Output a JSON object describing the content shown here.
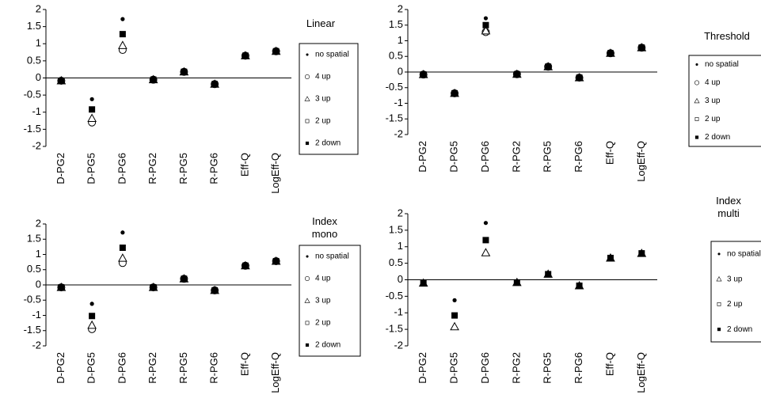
{
  "chart_data": [
    {
      "type": "scatter",
      "title": "Linear",
      "legend": "right",
      "categories": [
        "D-PG2",
        "D-PG5",
        "D-PG6",
        "R-PG2",
        "R-PG5",
        "R-PG6",
        "Eff-Q",
        "LogEff-Q"
      ],
      "ylim": [
        -2,
        2
      ],
      "yticks": [
        2,
        1.5,
        1,
        0.5,
        0,
        -0.5,
        -1,
        -1.5,
        -2
      ],
      "series": [
        {
          "name": "no spatial",
          "color": "#000000",
          "marker": "dot",
          "values": [
            -0.08,
            -0.62,
            1.72,
            -0.05,
            0.18,
            -0.18,
            0.65,
            0.78
          ]
        },
        {
          "name": "4 up",
          "color": "#000000",
          "marker": "circle",
          "values": [
            -0.08,
            -1.3,
            0.82,
            -0.05,
            0.18,
            -0.18,
            0.65,
            0.78
          ]
        },
        {
          "name": "3 up",
          "color": "#000000",
          "marker": "triangle",
          "values": [
            -0.08,
            -1.18,
            0.95,
            -0.05,
            0.18,
            -0.18,
            0.65,
            0.78
          ]
        },
        {
          "name": "2 up",
          "color": "#000000",
          "marker": "square",
          "values": [
            -0.08,
            -0.92,
            1.28,
            -0.05,
            0.18,
            -0.18,
            0.65,
            0.78
          ]
        },
        {
          "name": "2 down",
          "color": "#000000",
          "marker": "filled-square",
          "values": [
            -0.08,
            -0.92,
            1.28,
            -0.05,
            0.18,
            -0.18,
            0.65,
            0.78
          ]
        }
      ]
    },
    {
      "type": "scatter",
      "title": "Threshold",
      "legend": "right",
      "categories": [
        "D-PG2",
        "D-PG5",
        "D-PG6",
        "R-PG2",
        "R-PG5",
        "R-PG6",
        "Eff-Q",
        "LogEff-Q"
      ],
      "ylim": [
        -2,
        2
      ],
      "yticks": [
        2,
        1.5,
        1,
        0.5,
        0,
        -0.5,
        -1,
        -1.5,
        -2
      ],
      "series": [
        {
          "name": "no spatial",
          "color": "#000000",
          "marker": "dot",
          "values": [
            -0.08,
            -0.68,
            1.72,
            -0.07,
            0.17,
            -0.18,
            0.6,
            0.78
          ]
        },
        {
          "name": "4 up",
          "color": "#000000",
          "marker": "circle",
          "values": [
            -0.08,
            -0.68,
            1.28,
            -0.07,
            0.17,
            -0.18,
            0.6,
            0.78
          ]
        },
        {
          "name": "3 up",
          "color": "#000000",
          "marker": "triangle",
          "values": [
            -0.08,
            -0.68,
            1.32,
            -0.07,
            0.17,
            -0.18,
            0.6,
            0.78
          ]
        },
        {
          "name": "2 up",
          "color": "#000000",
          "marker": "square",
          "values": [
            -0.08,
            -0.68,
            1.5,
            -0.07,
            0.17,
            -0.18,
            0.6,
            0.78
          ]
        },
        {
          "name": "2 down",
          "color": "#000000",
          "marker": "filled-square",
          "values": [
            -0.08,
            -0.68,
            1.5,
            -0.07,
            0.17,
            -0.18,
            0.6,
            0.78
          ]
        }
      ]
    },
    {
      "type": "scatter",
      "title": "Index mono",
      "legend": "right",
      "categories": [
        "D-PG2",
        "D-PG5",
        "D-PG6",
        "R-PG2",
        "R-PG5",
        "R-PG6",
        "Eff-Q",
        "LogEff-Q"
      ],
      "ylim": [
        -2,
        2
      ],
      "yticks": [
        2,
        1.5,
        1,
        0.5,
        0,
        -0.5,
        -1,
        -1.5,
        -2
      ],
      "series": [
        {
          "name": "no spatial",
          "color": "#000000",
          "marker": "dot",
          "values": [
            -0.08,
            -0.62,
            1.72,
            -0.08,
            0.2,
            -0.18,
            0.63,
            0.78
          ]
        },
        {
          "name": "4 up",
          "color": "#000000",
          "marker": "circle",
          "values": [
            -0.08,
            -1.45,
            0.72,
            -0.08,
            0.2,
            -0.18,
            0.63,
            0.78
          ]
        },
        {
          "name": "3 up",
          "color": "#000000",
          "marker": "triangle",
          "values": [
            -0.08,
            -1.32,
            0.88,
            -0.08,
            0.2,
            -0.18,
            0.63,
            0.78
          ]
        },
        {
          "name": "2 up",
          "color": "#000000",
          "marker": "square",
          "values": [
            -0.08,
            -1.02,
            1.22,
            -0.08,
            0.2,
            -0.18,
            0.63,
            0.78
          ]
        },
        {
          "name": "2 down",
          "color": "#000000",
          "marker": "filled-square",
          "values": [
            -0.08,
            -1.02,
            1.22,
            -0.08,
            0.2,
            -0.18,
            0.63,
            0.78
          ]
        }
      ]
    },
    {
      "type": "scatter",
      "title": "Index multi",
      "legend": "right",
      "categories": [
        "D-PG2",
        "D-PG5",
        "D-PG6",
        "R-PG2",
        "R-PG5",
        "R-PG6",
        "Eff-Q",
        "LogEff-Q"
      ],
      "ylim": [
        -2,
        2
      ],
      "yticks": [
        2,
        1.5,
        1,
        0.5,
        0,
        -0.5,
        -1,
        -1.5,
        -2
      ],
      "series": [
        {
          "name": "no spatial",
          "color": "#000000",
          "marker": "dot",
          "values": [
            -0.1,
            -0.62,
            1.72,
            -0.08,
            0.17,
            -0.18,
            0.66,
            0.8
          ]
        },
        {
          "name": "3 up",
          "color": "#000000",
          "marker": "triangle",
          "values": [
            -0.1,
            -1.42,
            0.82,
            -0.08,
            0.17,
            -0.18,
            0.66,
            0.8
          ]
        },
        {
          "name": "2 up",
          "color": "#000000",
          "marker": "square",
          "values": [
            -0.1,
            -1.08,
            1.2,
            -0.08,
            0.17,
            -0.18,
            0.66,
            0.8
          ]
        },
        {
          "name": "2 down",
          "color": "#000000",
          "marker": "filled-square",
          "values": [
            -0.1,
            -1.08,
            1.2,
            -0.08,
            0.17,
            -0.18,
            0.66,
            0.8
          ]
        }
      ]
    }
  ]
}
